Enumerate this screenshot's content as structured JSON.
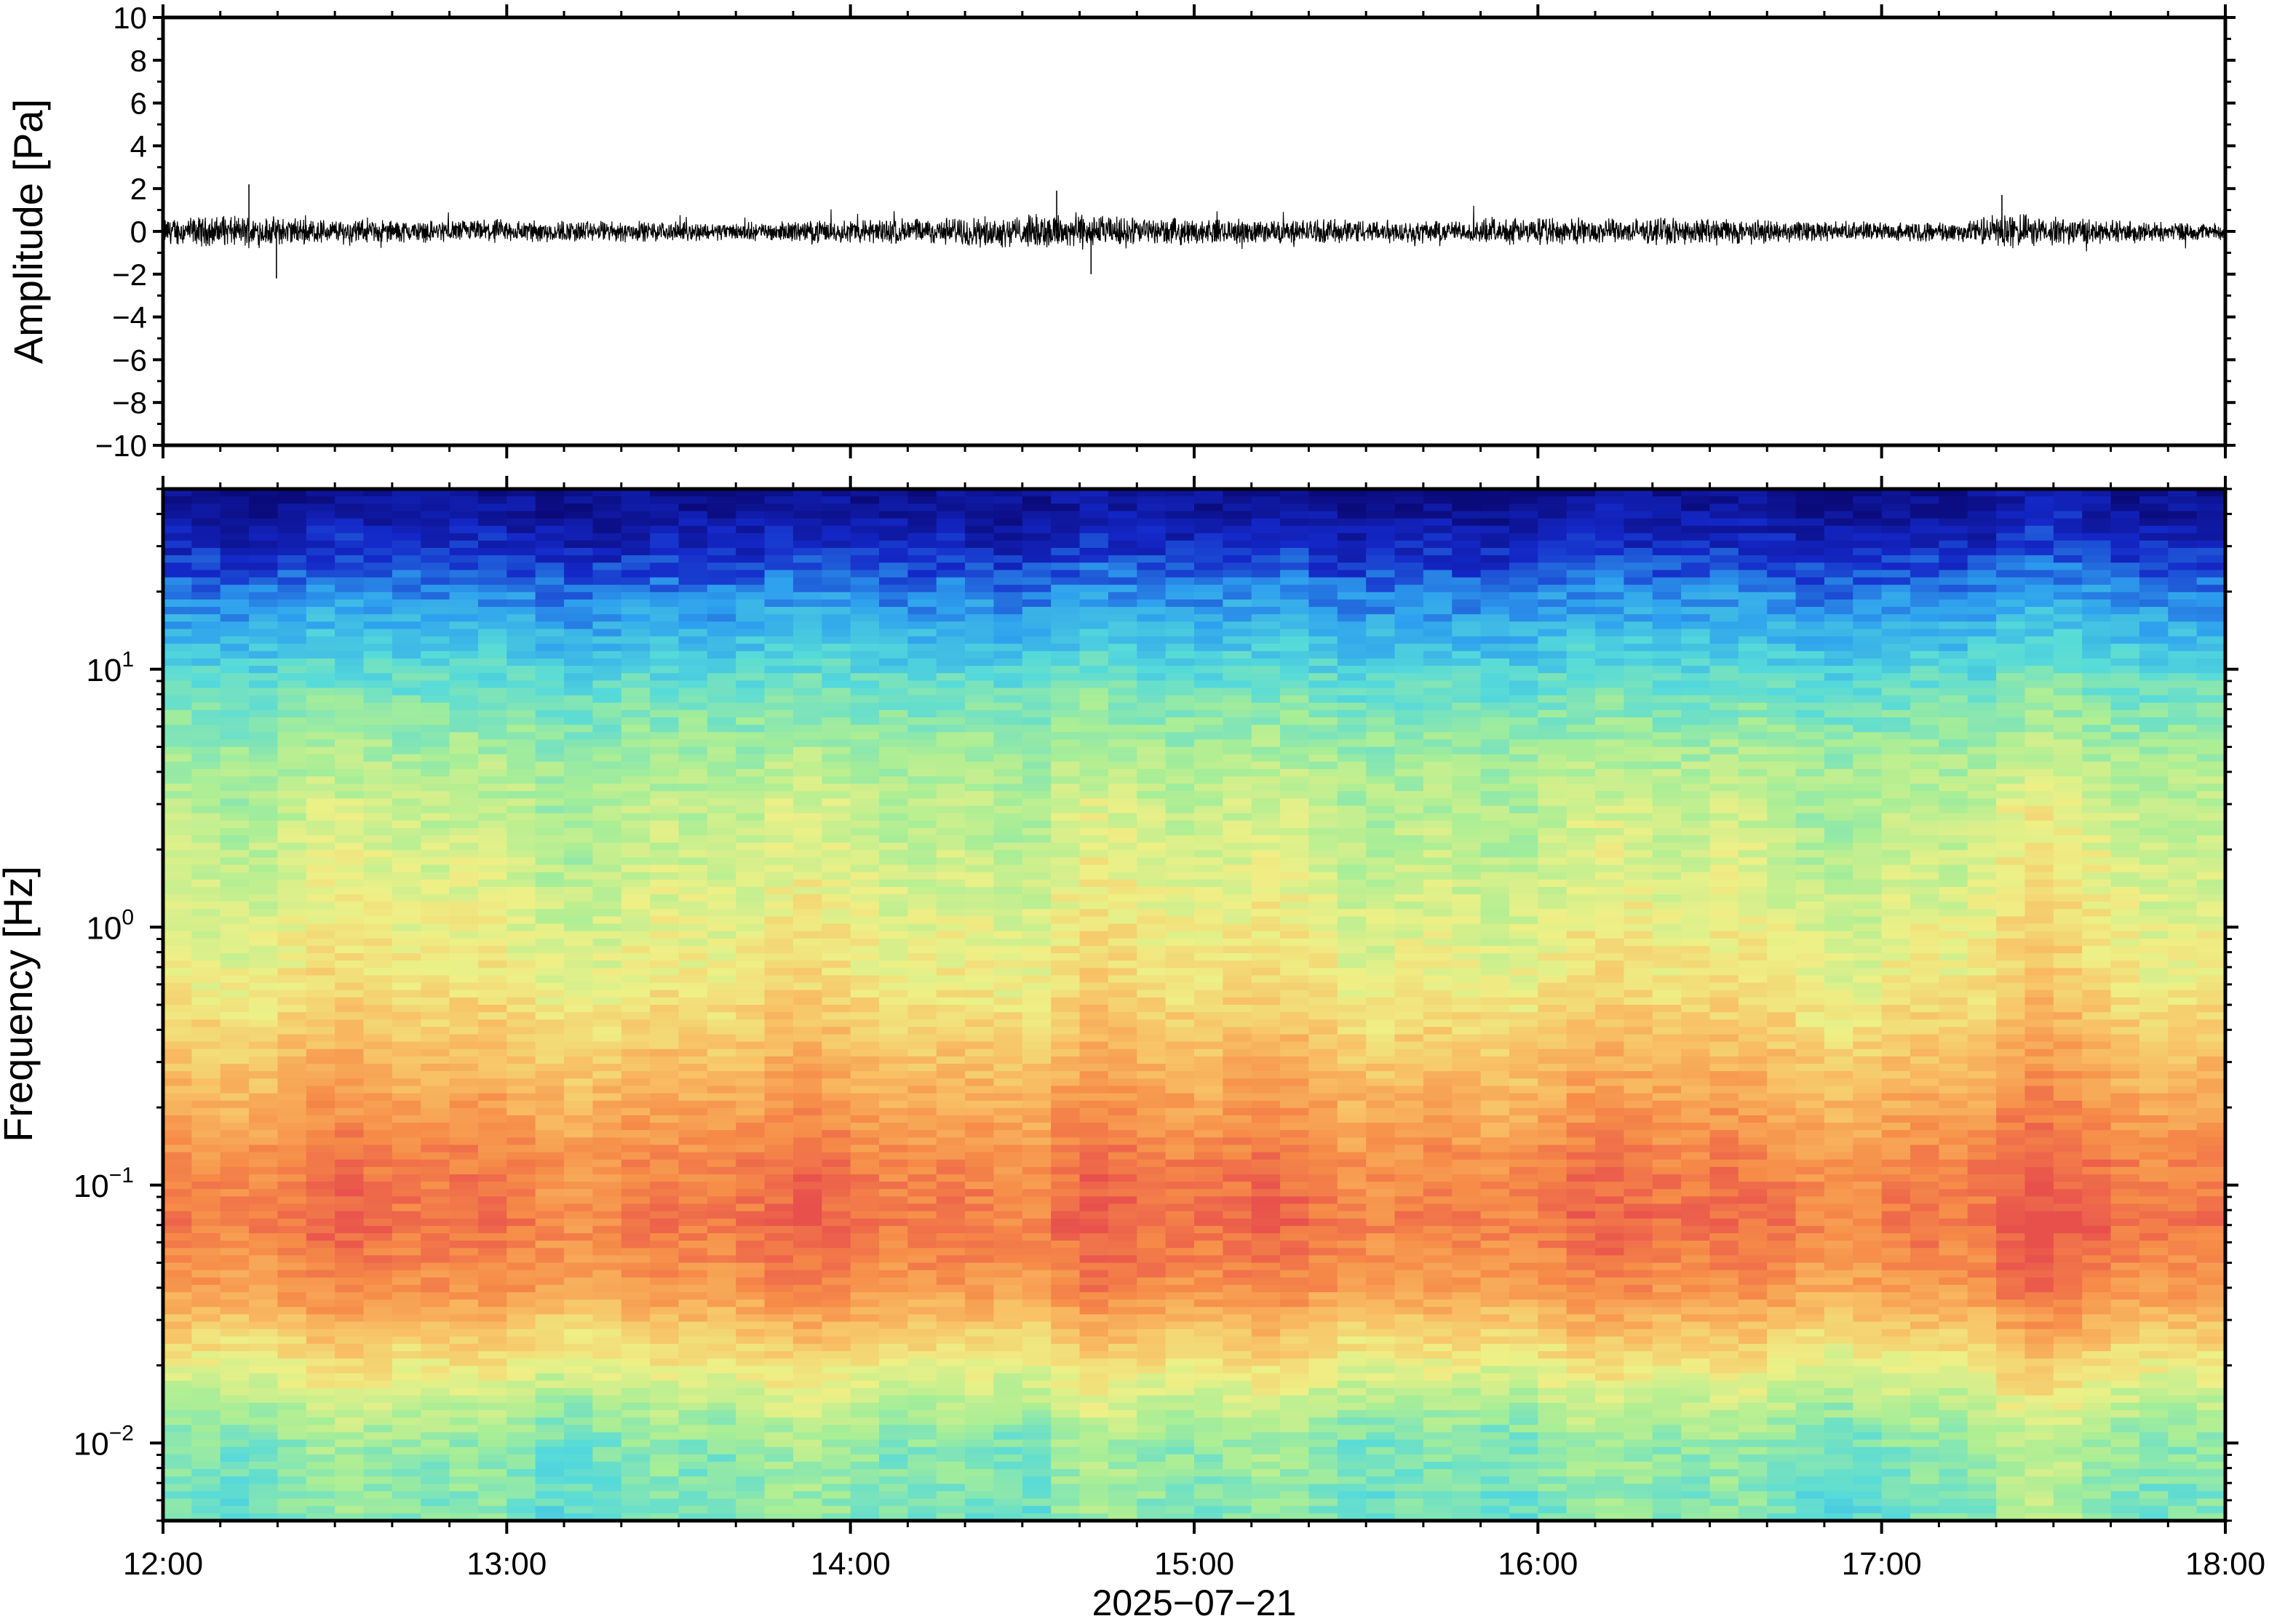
{
  "chart_data": [
    {
      "type": "line",
      "panel": "waveform",
      "ylabel": "Amplitude [Pa]",
      "ylim": [
        -10,
        10
      ],
      "yticks": [
        10,
        8,
        6,
        4,
        2,
        0,
        -2,
        -4,
        -6,
        -8,
        -10
      ],
      "yticklabels": [
        "10",
        "8",
        "6",
        "4",
        "2",
        "0",
        "−2",
        "−4",
        "−6",
        "−8",
        "−10"
      ],
      "xlim": [
        "12:00",
        "18:00"
      ],
      "series": [
        {
          "color": "#000000",
          "x_hours": [
            12.0,
            12.25,
            12.5,
            12.75,
            13.0,
            13.25,
            13.5,
            13.75,
            14.0,
            14.25,
            14.5,
            14.6,
            14.75,
            15.0,
            15.25,
            15.5,
            15.75,
            16.0,
            16.25,
            16.5,
            16.75,
            17.0,
            17.25,
            17.35,
            17.5,
            17.75,
            18.0
          ],
          "envelope": [
            0.9,
            1.0,
            0.8,
            0.7,
            0.8,
            0.7,
            0.6,
            0.6,
            0.8,
            0.9,
            1.0,
            1.3,
            1.0,
            0.8,
            0.8,
            0.8,
            0.7,
            0.9,
            0.8,
            0.9,
            0.7,
            0.6,
            0.7,
            1.2,
            0.9,
            0.7,
            0.5
          ],
          "spikes": [
            {
              "x_hours": 12.25,
              "y": 2.2
            },
            {
              "x_hours": 12.33,
              "y": -2.2
            },
            {
              "x_hours": 14.6,
              "y": 1.9
            },
            {
              "x_hours": 14.7,
              "y": -2.0
            },
            {
              "x_hours": 17.35,
              "y": 1.7
            }
          ]
        }
      ]
    },
    {
      "type": "heatmap",
      "panel": "spectrogram",
      "ylabel": "Frequency [Hz]",
      "yscale": "log",
      "ylim": [
        0.005,
        50
      ],
      "yticks": [
        {
          "value": 10,
          "base": "10",
          "exp": "1"
        },
        {
          "value": 1,
          "base": "10",
          "exp": "0"
        },
        {
          "value": 0.1,
          "base": "10",
          "exp": "−1"
        },
        {
          "value": 0.01,
          "base": "10",
          "exp": "−2"
        }
      ],
      "xlim": [
        "12:00",
        "18:00"
      ],
      "colormap": "jet",
      "colors": [
        "#0a0a7a",
        "#1428c8",
        "#2ea0ee",
        "#55dada",
        "#a8ee96",
        "#eef086",
        "#f8c064",
        "#f68c48",
        "#e8504c"
      ],
      "features": {
        "high_energy_band_hz": [
          0.03,
          0.2
        ],
        "peak_times": [
          "14:40",
          "17:25"
        ],
        "weak_low_freq_hz": [
          0.005,
          0.015
        ]
      },
      "xticks": [
        "12:00",
        "13:00",
        "14:00",
        "15:00",
        "16:00",
        "17:00",
        "18:00"
      ],
      "xlabel": "2025−07−21"
    }
  ]
}
